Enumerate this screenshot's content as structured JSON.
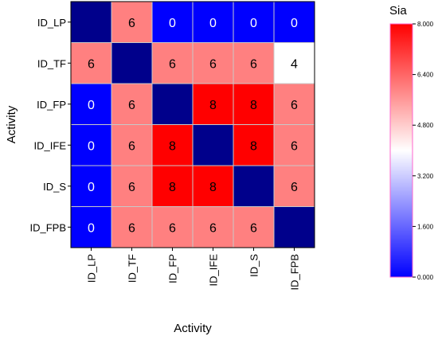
{
  "chart_data": {
    "type": "heatmap",
    "xlabel": "Activity",
    "ylabel": "Activity",
    "x_categories": [
      "ID_LP",
      "ID_TF",
      "ID_FP",
      "ID_IFE",
      "ID_S",
      "ID_FPB"
    ],
    "y_categories": [
      "ID_LP",
      "ID_TF",
      "ID_FP",
      "ID_IFE",
      "ID_S",
      "ID_FPB"
    ],
    "values": [
      [
        null,
        6,
        0,
        0,
        0,
        0
      ],
      [
        6,
        null,
        6,
        6,
        6,
        4
      ],
      [
        0,
        6,
        null,
        8,
        8,
        6
      ],
      [
        0,
        6,
        8,
        null,
        8,
        6
      ],
      [
        0,
        6,
        8,
        8,
        null,
        6
      ],
      [
        0,
        6,
        6,
        6,
        6,
        null
      ]
    ],
    "colorbar": {
      "title": "Sia",
      "range": [
        0,
        8
      ],
      "ticks": [
        "0.000",
        "1.600",
        "3.200",
        "4.800",
        "6.400",
        "8.000"
      ]
    },
    "colors": {
      "low": "#0000ff",
      "mid": "#ffffff",
      "high": "#ff0000",
      "diagonal": "#00008b"
    }
  }
}
